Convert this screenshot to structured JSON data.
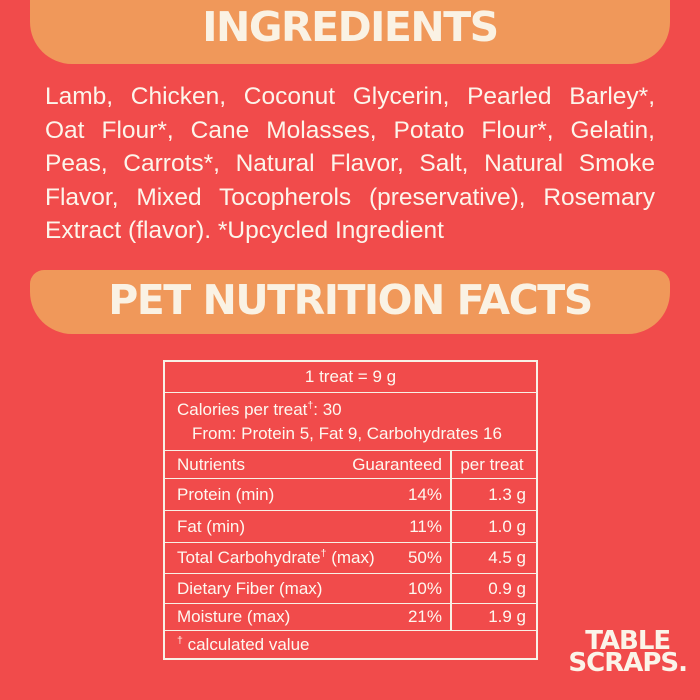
{
  "colors": {
    "background_red": "#F14B4B",
    "banner_orange": "#F0985A",
    "text_cream": "#FCF5EB"
  },
  "ingredients": {
    "title": "INGREDIENTS",
    "lines": [
      "Lamb, Chicken, Coconut Glycerin, Pearled Barley*,",
      "Oat Flour*, Cane Molasses, Potato Flour*, Gelatin,",
      "Peas, Carrots*, Natural Flavor, Salt, Natural Smoke",
      "Flavor, Mixed Tocopherols (preservative), Rosemary",
      "Extract (flavor). *Upcycled Ingredient"
    ]
  },
  "nutrition": {
    "title": "PET NUTRITION FACTS",
    "serving": "1 treat = 9 g",
    "calories": {
      "label_pre": "Calories per treat",
      "label_sup": "†",
      "label_post": ": 30",
      "from_line": "From: Protein 5, Fat 9, Carbohydrates 16"
    },
    "header": {
      "nutrients": "Nutrients",
      "guaranteed": "Guaranteed",
      "per_treat": "per treat"
    },
    "rows": [
      {
        "label_pre": "Protein (min)",
        "label_sup": "",
        "label_post": "",
        "guaranteed": "14%",
        "per_treat": "1.3 g"
      },
      {
        "label_pre": "Fat (min)",
        "label_sup": "",
        "label_post": "",
        "guaranteed": "11%",
        "per_treat": "1.0 g"
      },
      {
        "label_pre": "Total Carbohydrate",
        "label_sup": "†",
        "label_post": " (max)",
        "guaranteed": "50%",
        "per_treat": "4.5 g"
      },
      {
        "label_pre": "Dietary Fiber (max)",
        "label_sup": "",
        "label_post": "",
        "guaranteed": "10%",
        "per_treat": "0.9 g"
      },
      {
        "label_pre": "Moisture (max)",
        "label_sup": "",
        "label_post": "",
        "guaranteed": "21%",
        "per_treat": "1.9 g"
      }
    ],
    "footnote": {
      "sup": "†",
      "text": " calculated value"
    }
  },
  "logo": {
    "line1": "TABLE",
    "line2": "SCRAPS."
  }
}
